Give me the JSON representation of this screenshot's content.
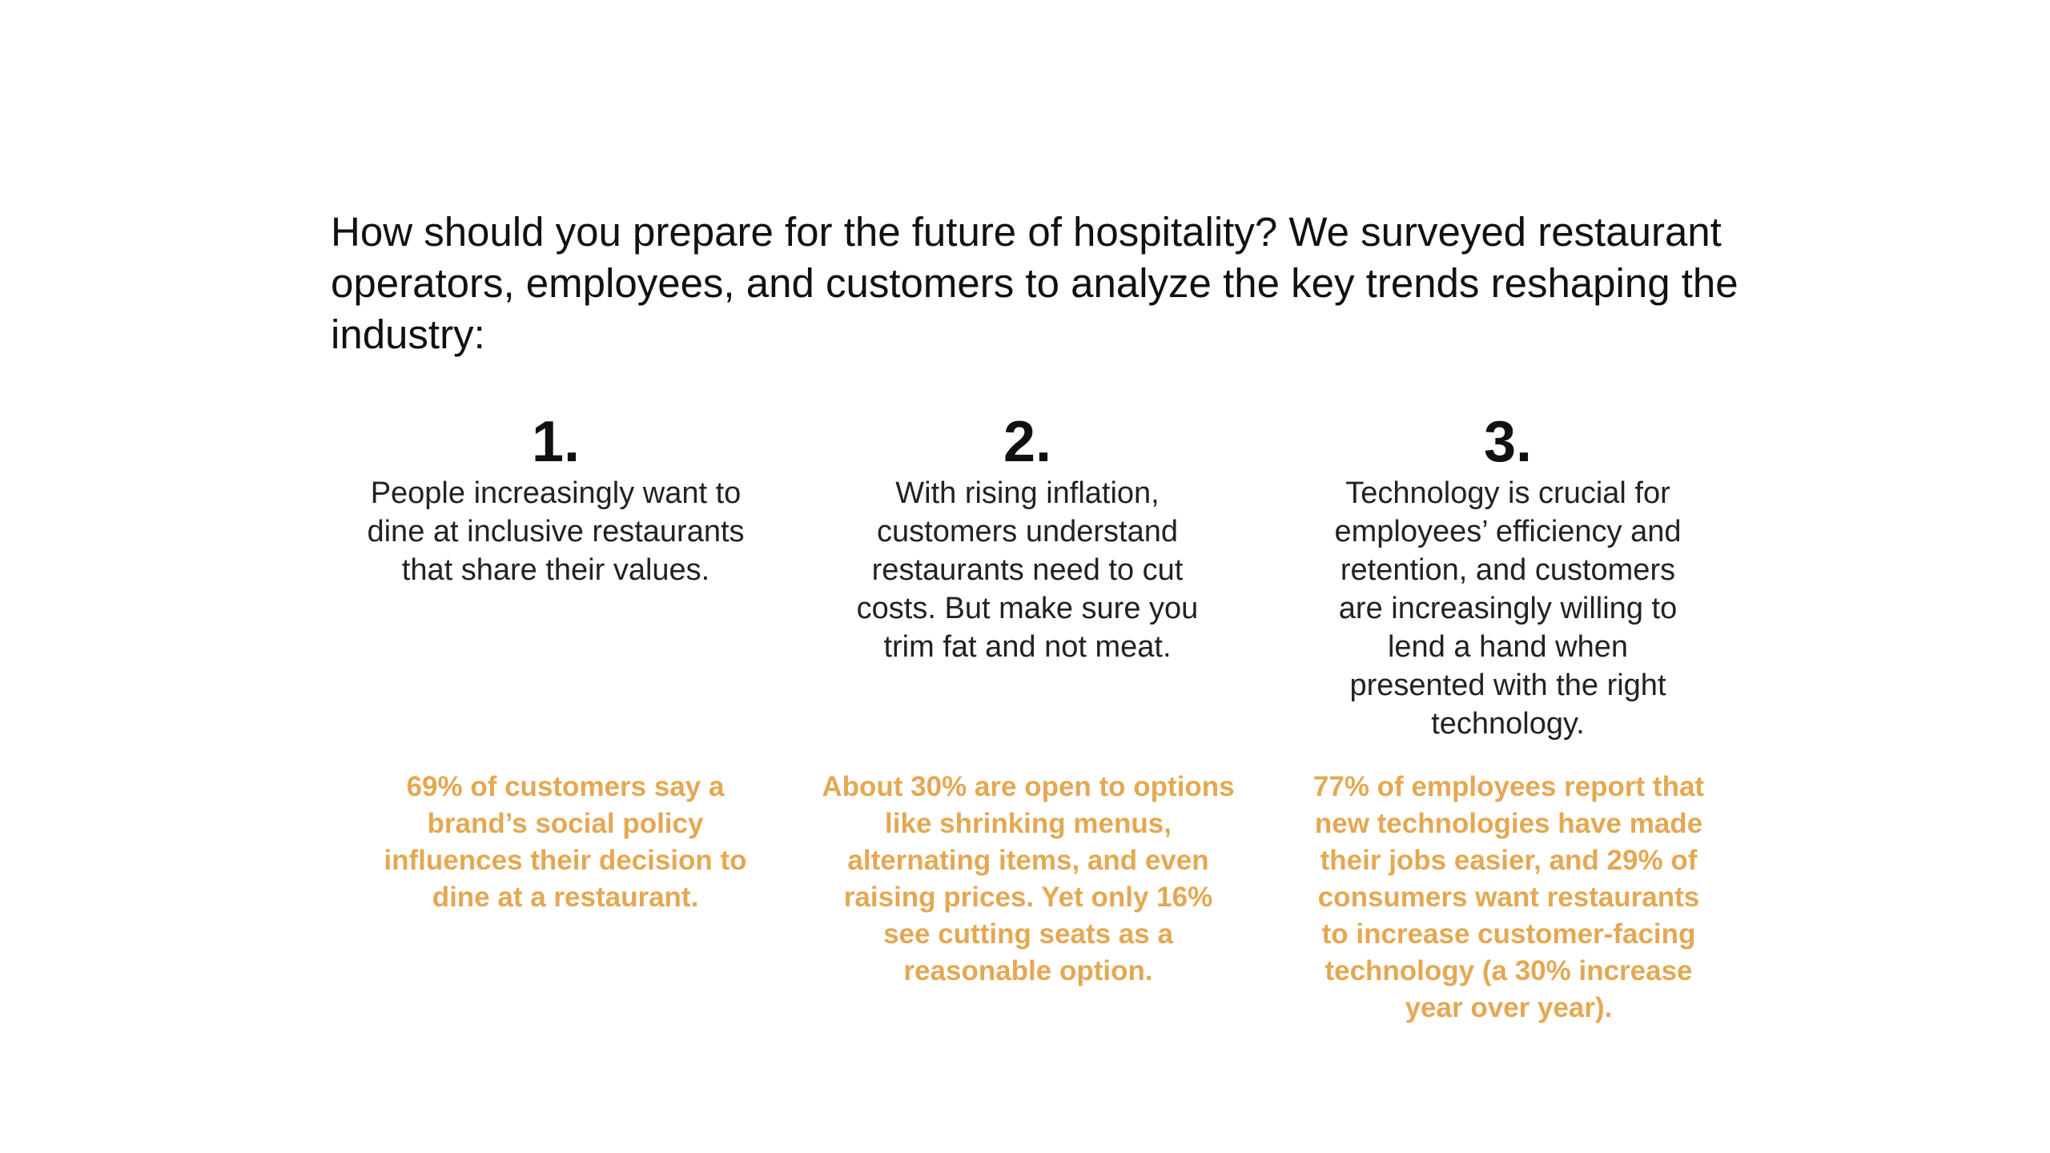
{
  "header": {
    "title": "How should you prepare for the future of hospitality? We surveyed restaurant operators, employees, and customers to analyze the key trends reshaping the industry:"
  },
  "items": [
    {
      "number": "1.",
      "text": "People increasingly want to dine at inclusive restaurants that share their values.",
      "stat": "69% of customers say a brand’s social policy influences their decision to dine at a restaurant."
    },
    {
      "number": "2.",
      "text": "With rising inflation, customers understand restaurants need to cut costs. But make sure you trim fat and not meat.",
      "stat": "About 30% are open to options like shrinking menus, alternating items, and even raising prices. Yet only 16% see cutting seats as a reasonable option."
    },
    {
      "number": "3.",
      "text": "Technology is crucial for employees’ efficiency and retention, and customers are increasingly willing to lend a hand when presented with the right technology.",
      "stat": "77% of employees report that new technologies have made their jobs easier, and 29% of consumers want restaurants to increase customer-facing technology (a 30% increase year over year)."
    }
  ]
}
